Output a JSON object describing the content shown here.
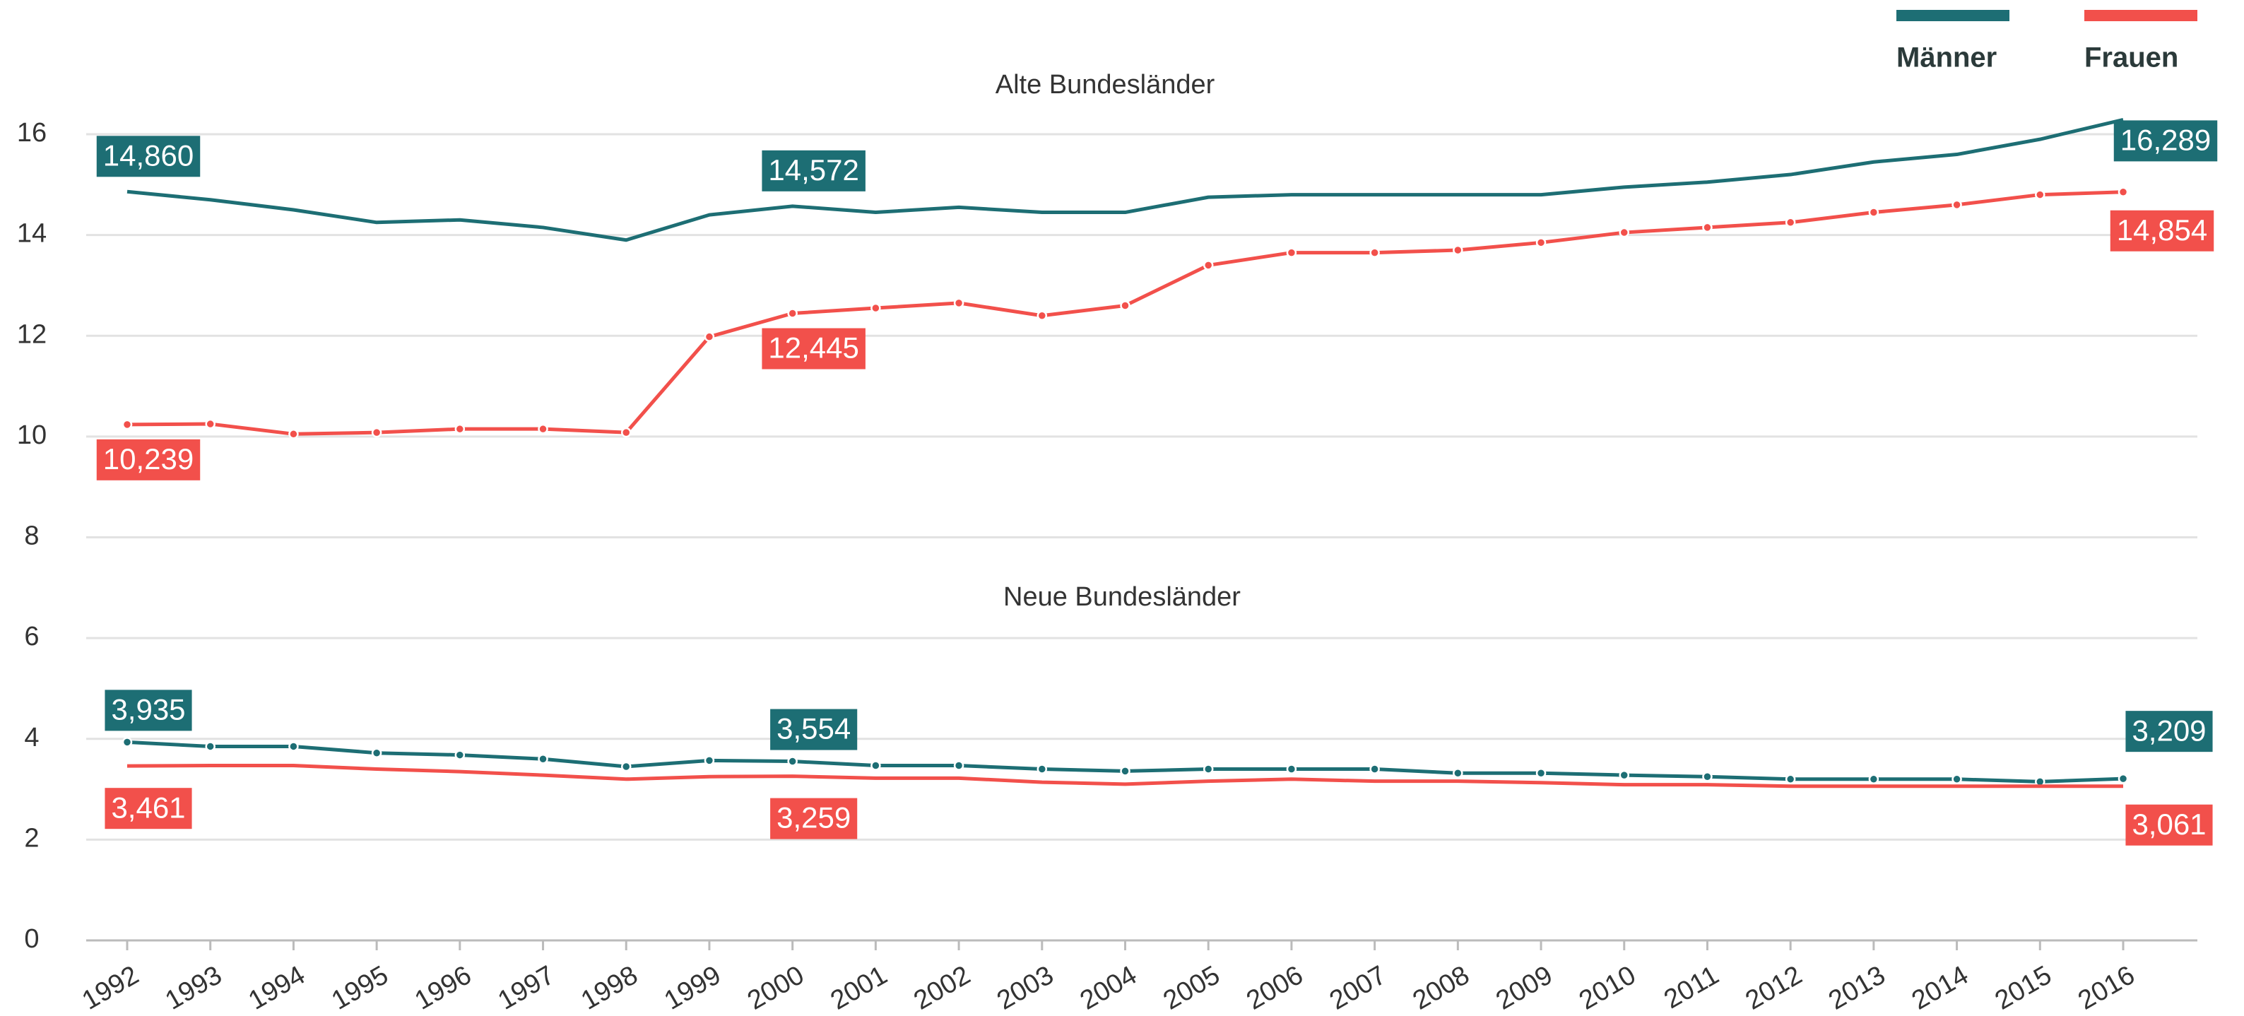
{
  "chart_data": {
    "type": "line",
    "categories": [
      "1992",
      "1993",
      "1994",
      "1995",
      "1996",
      "1997",
      "1998",
      "1999",
      "2000",
      "2001",
      "2002",
      "2003",
      "2004",
      "2005",
      "2006",
      "2007",
      "2008",
      "2009",
      "2010",
      "2011",
      "2012",
      "2013",
      "2014",
      "2015",
      "2016"
    ],
    "ylim": [
      0,
      16.5
    ],
    "yticks": [
      0,
      2,
      4,
      6,
      8,
      10,
      12,
      14,
      16
    ],
    "grid": true,
    "legend": "top-right",
    "groups": [
      {
        "title": "Alte Bundesländer",
        "series": [
          {
            "name": "Männer",
            "color": "#1d6e74",
            "markers": false,
            "values": [
              14.86,
              14.7,
              14.5,
              14.25,
              14.3,
              14.15,
              13.9,
              14.4,
              14.572,
              14.45,
              14.55,
              14.45,
              14.45,
              14.75,
              14.8,
              14.8,
              14.8,
              14.8,
              14.95,
              15.05,
              15.2,
              15.45,
              15.6,
              15.9,
              16.289
            ],
            "value_labels": [
              "14,860",
              null,
              null,
              null,
              null,
              null,
              null,
              null,
              "14,572",
              null,
              null,
              null,
              null,
              null,
              null,
              null,
              null,
              null,
              null,
              null,
              null,
              null,
              null,
              null,
              "16,289"
            ]
          },
          {
            "name": "Frauen",
            "color": "#f2504b",
            "markers": true,
            "values": [
              10.239,
              10.25,
              10.05,
              10.08,
              10.15,
              10.15,
              10.08,
              11.98,
              12.445,
              12.55,
              12.65,
              12.4,
              12.6,
              13.4,
              13.65,
              13.65,
              13.7,
              13.85,
              14.05,
              14.15,
              14.25,
              14.45,
              14.6,
              14.8,
              14.854
            ],
            "value_labels": [
              "10,239",
              null,
              null,
              null,
              null,
              null,
              null,
              null,
              "12,445",
              null,
              null,
              null,
              null,
              null,
              null,
              null,
              null,
              null,
              null,
              null,
              null,
              null,
              null,
              null,
              "14,854"
            ]
          }
        ]
      },
      {
        "title": "Neue Bundesländer",
        "series": [
          {
            "color": "#1d6e74",
            "markers": true,
            "values": [
              3.935,
              3.85,
              3.85,
              3.72,
              3.68,
              3.6,
              3.45,
              3.57,
              3.554,
              3.47,
              3.47,
              3.4,
              3.36,
              3.4,
              3.4,
              3.4,
              3.32,
              3.32,
              3.28,
              3.25,
              3.2,
              3.2,
              3.2,
              3.15,
              3.209
            ],
            "value_labels": [
              "3,935",
              null,
              null,
              null,
              null,
              null,
              null,
              null,
              "3,554",
              null,
              null,
              null,
              null,
              null,
              null,
              null,
              null,
              null,
              null,
              null,
              null,
              null,
              null,
              null,
              "3,209"
            ]
          },
          {
            "color": "#f2504b",
            "markers": false,
            "values": [
              3.461,
              3.47,
              3.47,
              3.4,
              3.35,
              3.28,
              3.2,
              3.25,
              3.259,
              3.22,
              3.22,
              3.14,
              3.1,
              3.16,
              3.2,
              3.16,
              3.16,
              3.13,
              3.09,
              3.09,
              3.06,
              3.06,
              3.06,
              3.06,
              3.061
            ],
            "value_labels": [
              "3,461",
              null,
              null,
              null,
              null,
              null,
              null,
              null,
              "3,259",
              null,
              null,
              null,
              null,
              null,
              null,
              null,
              null,
              null,
              null,
              null,
              null,
              null,
              null,
              null,
              "3,061"
            ]
          }
        ]
      }
    ]
  }
}
